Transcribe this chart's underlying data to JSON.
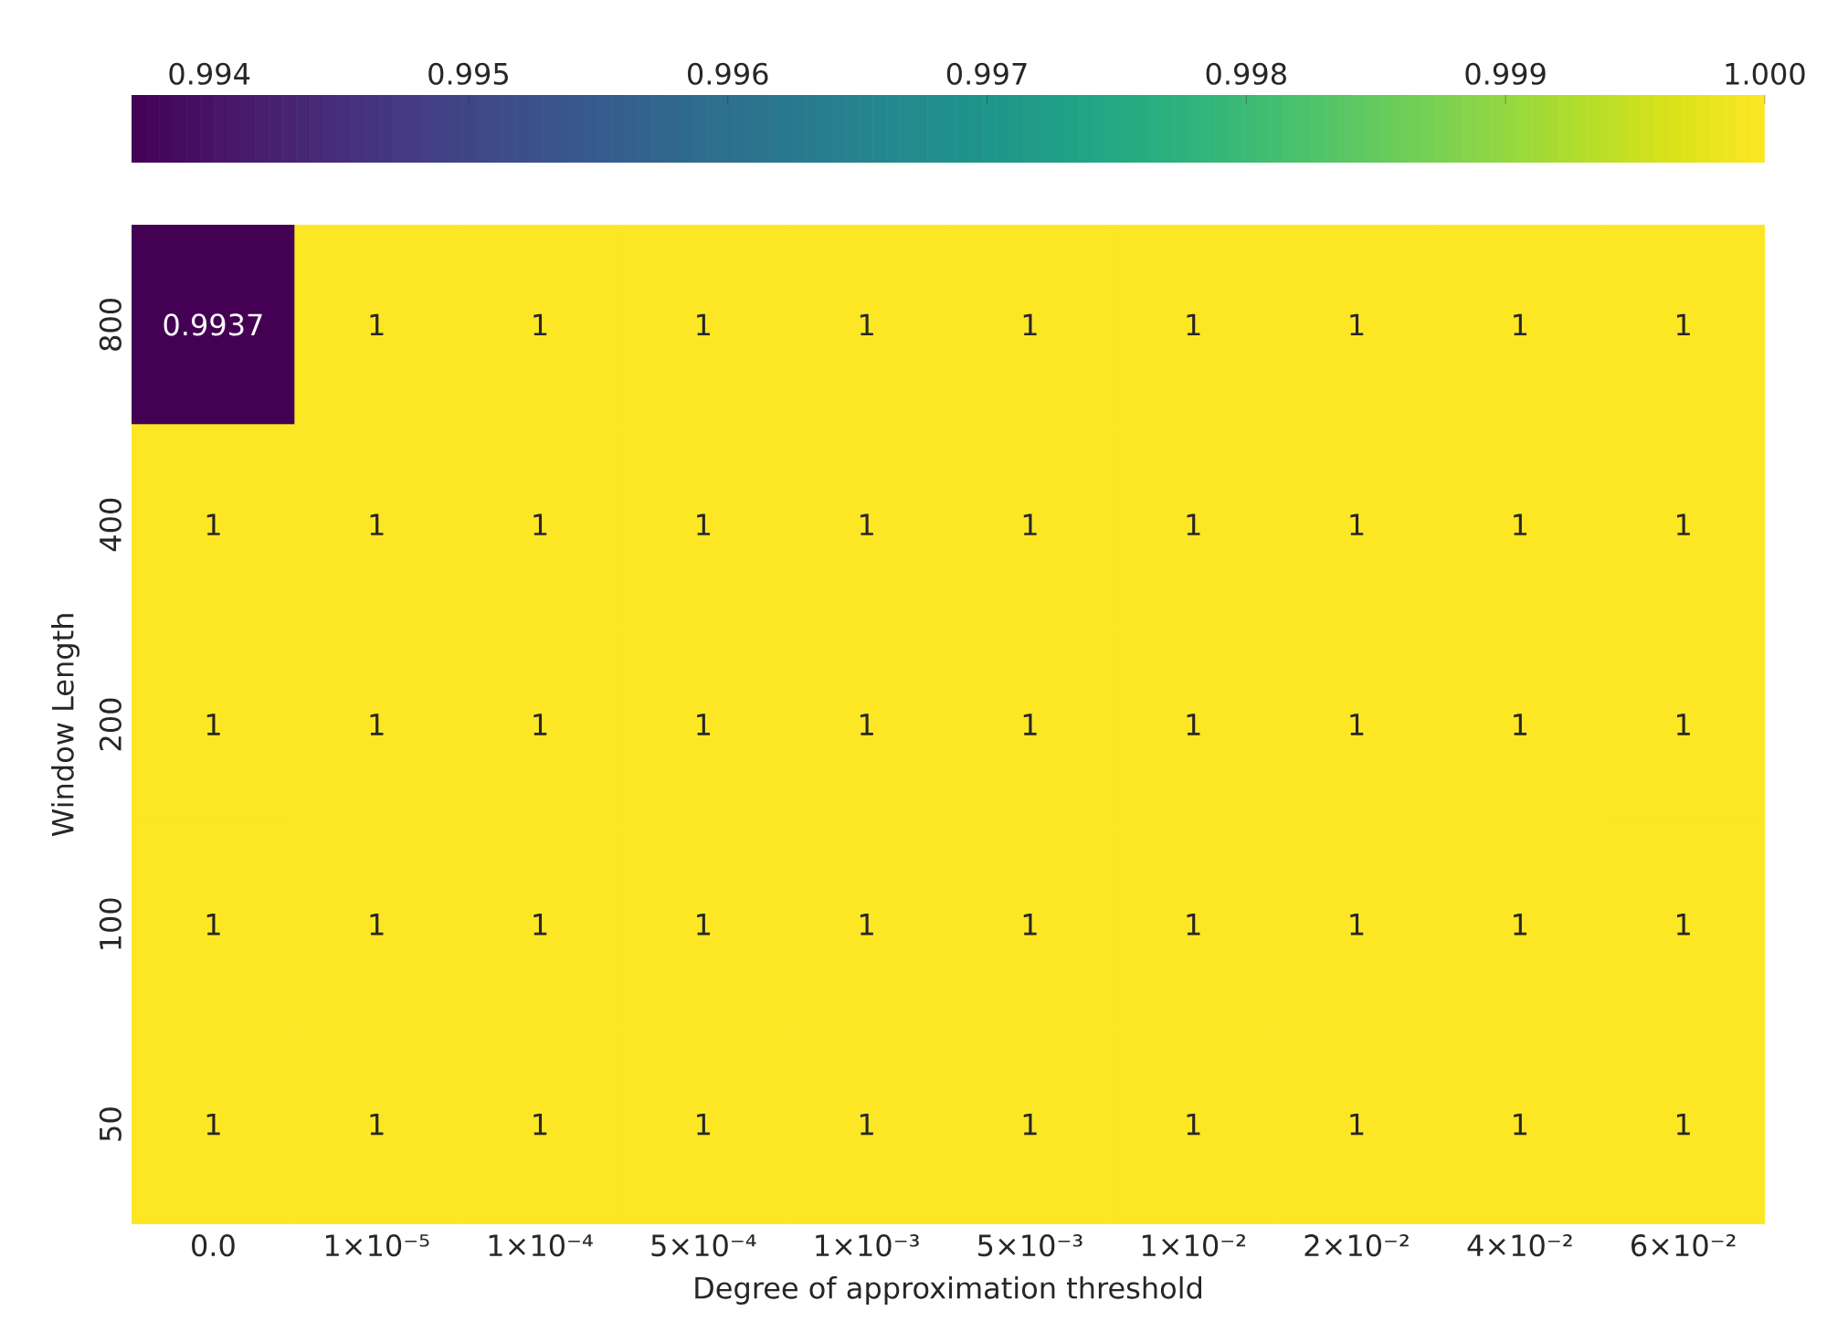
{
  "chart_data": {
    "type": "heatmap",
    "xlabel": "Degree of approximation threshold",
    "ylabel": "Window Length",
    "categories": [
      "0.0",
      "1×10⁻⁵",
      "1×10⁻⁴",
      "5×10⁻⁴",
      "1×10⁻³",
      "5×10⁻³",
      "1×10⁻²",
      "2×10⁻²",
      "4×10⁻²",
      "6×10⁻²"
    ],
    "y_categories": [
      "800",
      "400",
      "200",
      "100",
      "50"
    ],
    "cells": [
      [
        0.9937,
        1,
        1,
        1,
        1,
        1,
        1,
        1,
        1,
        1
      ],
      [
        1,
        1,
        1,
        1,
        1,
        1,
        1,
        1,
        1,
        1
      ],
      [
        1,
        1,
        1,
        1,
        1,
        1,
        1,
        1,
        1,
        1
      ],
      [
        1,
        1,
        1,
        1,
        1,
        1,
        1,
        1,
        1,
        1
      ],
      [
        1,
        1,
        1,
        1,
        1,
        1,
        1,
        1,
        1,
        1
      ]
    ],
    "data_labels": true,
    "clim": [
      0.9937,
      1.0
    ],
    "cticks": [
      {
        "value": 0.994,
        "label": "0.994"
      },
      {
        "value": 0.995,
        "label": "0.995"
      },
      {
        "value": 0.996,
        "label": "0.996"
      },
      {
        "value": 0.997,
        "label": "0.997"
      },
      {
        "value": 0.998,
        "label": "0.998"
      },
      {
        "value": 0.999,
        "label": "0.999"
      },
      {
        "value": 1.0,
        "label": "1.000"
      }
    ]
  }
}
